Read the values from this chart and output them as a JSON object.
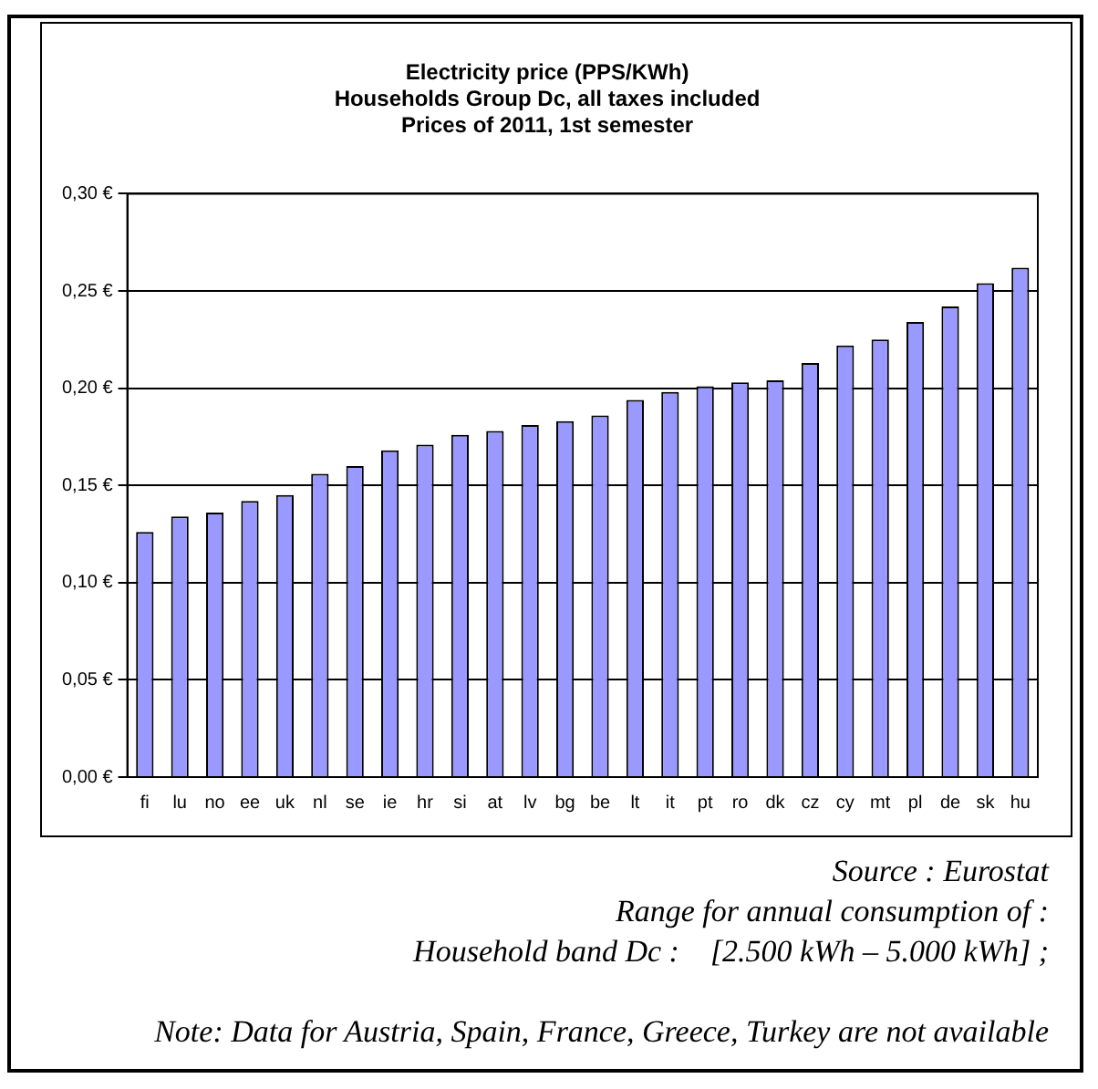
{
  "chart_data": {
    "type": "bar",
    "title": "Electricity price (PPS/KWh)\nHouseholds Group Dc, all taxes included\nPrices of 2011, 1st semester",
    "categories": [
      "fi",
      "lu",
      "no",
      "ee",
      "uk",
      "nl",
      "se",
      "ie",
      "hr",
      "si",
      "at",
      "lv",
      "bg",
      "be",
      "lt",
      "it",
      "pt",
      "ro",
      "dk",
      "cz",
      "cy",
      "mt",
      "pl",
      "de",
      "sk",
      "hu"
    ],
    "values": [
      0.126,
      0.134,
      0.136,
      0.142,
      0.145,
      0.156,
      0.16,
      0.168,
      0.171,
      0.176,
      0.178,
      0.181,
      0.183,
      0.186,
      0.194,
      0.198,
      0.201,
      0.203,
      0.204,
      0.213,
      0.222,
      0.225,
      0.234,
      0.242,
      0.254,
      0.262
    ],
    "color": "#9999ff",
    "ylim": [
      0,
      0.3
    ],
    "yticks": [
      {
        "value": 0,
        "label": "0,00 €"
      },
      {
        "value": 0.05,
        "label": "0,05 €"
      },
      {
        "value": 0.1,
        "label": "0,10 €"
      },
      {
        "value": 0.15,
        "label": "0,15 €"
      },
      {
        "value": 0.2,
        "label": "0,20 €"
      },
      {
        "value": 0.25,
        "label": "0,25 €"
      },
      {
        "value": 0.3,
        "label": "0,30 €"
      }
    ],
    "grid": "y",
    "annotations": [
      "Source : Eurostat",
      "Range for annual consumption of :",
      "Household band Dc :    [2.500 kWh – 5.000 kWh] ;",
      "Note: Data for Austria, Spain, France, Greece, Turkey are not available"
    ]
  }
}
